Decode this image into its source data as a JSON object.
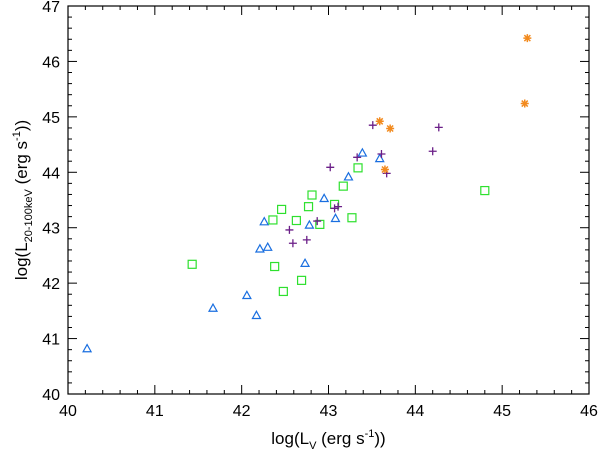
{
  "chart_data": {
    "type": "scatter",
    "xlabel": {
      "pre": "log(L",
      "sub": "V",
      "post": " (erg s",
      "sup": "-1",
      "end": "))"
    },
    "ylabel": {
      "pre": "log(L",
      "sub": "20-100keV",
      "post": " (erg s",
      "sup": "-1",
      "end": "))"
    },
    "xlim": [
      40,
      46
    ],
    "ylim": [
      40,
      47
    ],
    "x_ticks": [
      "40",
      "41",
      "42",
      "43",
      "44",
      "45",
      "46"
    ],
    "y_ticks": [
      "40",
      "41",
      "42",
      "43",
      "44",
      "45",
      "46",
      "47"
    ],
    "grid": false,
    "series": [
      {
        "marker": "triangle",
        "color": "#1a6fe0",
        "points": [
          [
            40.22,
            40.82
          ],
          [
            41.67,
            41.55
          ],
          [
            42.06,
            41.78
          ],
          [
            42.17,
            41.42
          ],
          [
            42.21,
            42.62
          ],
          [
            42.26,
            43.11
          ],
          [
            42.3,
            42.65
          ],
          [
            42.73,
            42.36
          ],
          [
            42.78,
            43.05
          ],
          [
            42.95,
            43.53
          ],
          [
            43.08,
            43.17
          ],
          [
            43.23,
            43.92
          ],
          [
            43.39,
            44.35
          ],
          [
            43.59,
            44.25
          ]
        ]
      },
      {
        "marker": "square",
        "color": "#2ee02e",
        "points": [
          [
            41.43,
            42.34
          ],
          [
            42.36,
            43.14
          ],
          [
            42.38,
            42.3
          ],
          [
            42.46,
            43.33
          ],
          [
            42.48,
            41.85
          ],
          [
            42.63,
            43.13
          ],
          [
            42.69,
            42.05
          ],
          [
            42.77,
            43.38
          ],
          [
            42.81,
            43.59
          ],
          [
            42.9,
            43.06
          ],
          [
            43.07,
            43.42
          ],
          [
            43.17,
            43.75
          ],
          [
            43.27,
            43.18
          ],
          [
            43.34,
            44.08
          ],
          [
            44.8,
            43.67
          ]
        ]
      },
      {
        "marker": "plus",
        "color": "#6b1f88",
        "points": [
          [
            42.55,
            42.96
          ],
          [
            42.59,
            42.72
          ],
          [
            42.75,
            42.78
          ],
          [
            42.87,
            43.12
          ],
          [
            43.02,
            44.09
          ],
          [
            43.07,
            43.35
          ],
          [
            43.11,
            43.38
          ],
          [
            43.33,
            44.27
          ],
          [
            43.51,
            44.85
          ],
          [
            43.61,
            44.33
          ],
          [
            43.67,
            43.98
          ],
          [
            44.2,
            44.38
          ],
          [
            44.27,
            44.81
          ]
        ]
      },
      {
        "marker": "asterisk",
        "color": "#f28a1e",
        "points": [
          [
            43.59,
            44.92
          ],
          [
            43.65,
            44.05
          ],
          [
            43.71,
            44.79
          ],
          [
            45.26,
            45.24
          ],
          [
            45.29,
            46.42
          ]
        ]
      }
    ]
  }
}
